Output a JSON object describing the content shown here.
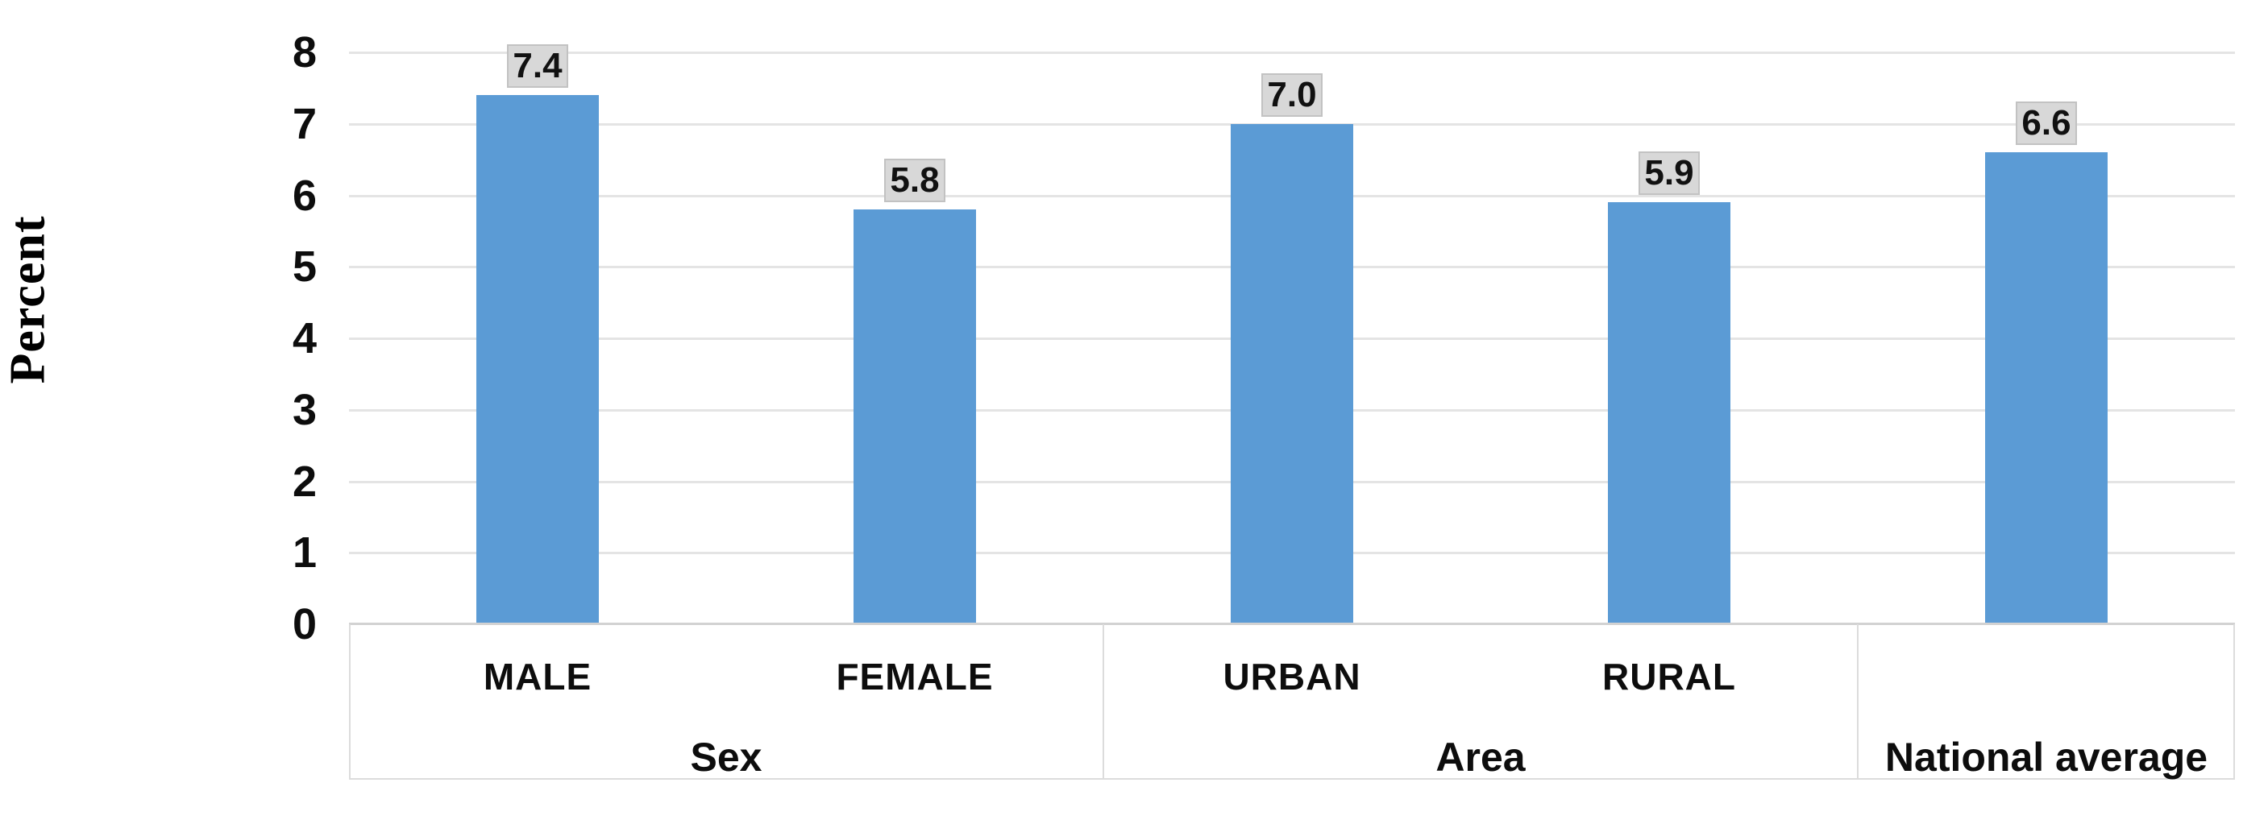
{
  "chart_data": {
    "type": "bar",
    "title": "",
    "xlabel": "",
    "ylabel": "Percent",
    "ylim": [
      0,
      8
    ],
    "yticks": [
      0,
      1,
      2,
      3,
      4,
      5,
      6,
      7,
      8
    ],
    "grid": true,
    "legend_position": "none",
    "bar_color": "#5B9BD5",
    "data_label_bg": "#d8d8d8",
    "data_label_border": "#c2c2c2",
    "categories": [
      "MALE",
      "FEMALE",
      "URBAN",
      "RURAL",
      ""
    ],
    "values": [
      7.4,
      5.8,
      7.0,
      5.9,
      6.6
    ],
    "data_labels": [
      "7.4",
      "5.8",
      "7.0",
      "5.9",
      "6.6"
    ],
    "groups": [
      {
        "label": "Sex",
        "categories": [
          "MALE",
          "FEMALE"
        ],
        "values": [
          7.4,
          5.8
        ]
      },
      {
        "label": "Area",
        "categories": [
          "URBAN",
          "RURAL"
        ],
        "values": [
          7.0,
          5.9
        ]
      },
      {
        "label": "National average",
        "categories": [
          ""
        ],
        "values": [
          6.6
        ]
      }
    ]
  }
}
